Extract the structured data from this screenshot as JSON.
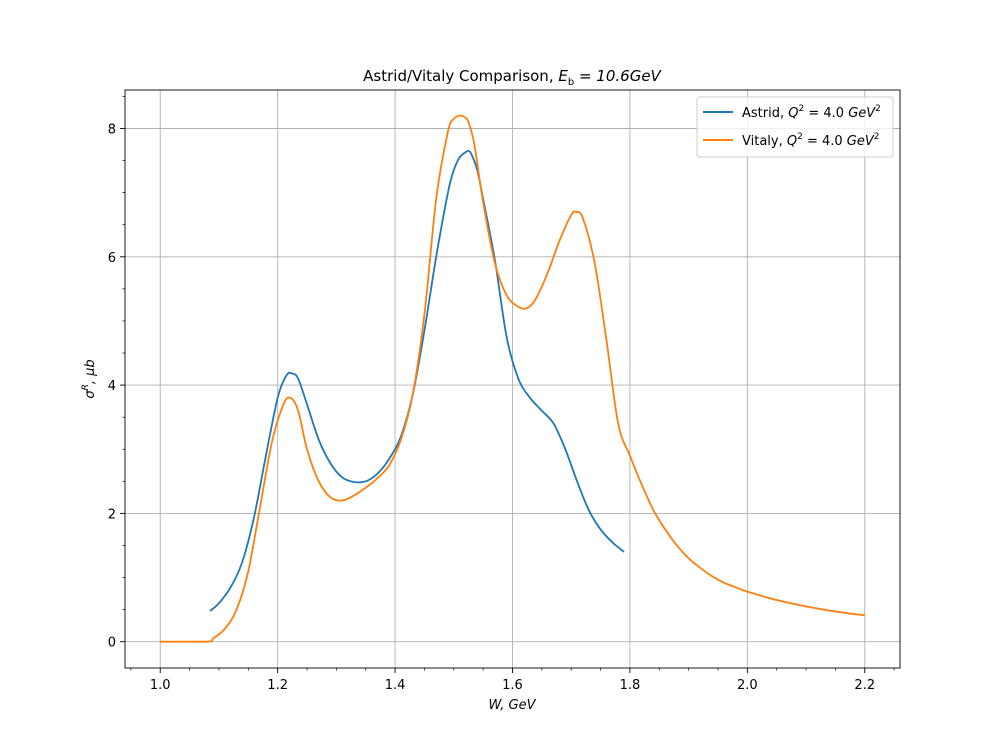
{
  "chart_data": {
    "type": "line",
    "title": "Astrid/Vitaly Comparison, E_b = 10.6GeV",
    "title_plain": "Astrid/Vitaly Comparison, ",
    "title_math": "E",
    "title_math_sub": "b",
    "title_math_rest": " = 10.6GeV",
    "xlabel": "W, GeV",
    "ylabel": "σR, μb",
    "ylabel_base": "σ",
    "ylabel_sup": "R",
    "ylabel_rest": ", μb",
    "xlim": [
      0.94,
      2.26
    ],
    "ylim": [
      -0.41,
      8.6
    ],
    "xticks": [
      "1.0",
      "1.2",
      "1.4",
      "1.6",
      "1.8",
      "2.0",
      "2.2"
    ],
    "yticks": [
      "0",
      "2",
      "4",
      "6",
      "8"
    ],
    "grid": true,
    "legend_position": "top-right",
    "series": [
      {
        "name": "Astrid, Q^2 = 4.0 GeV^2",
        "legend_prefix": "Astrid, ",
        "color": "#1f77b4",
        "x": [
          1.085,
          1.1,
          1.12,
          1.14,
          1.16,
          1.18,
          1.2,
          1.215,
          1.225,
          1.235,
          1.25,
          1.27,
          1.29,
          1.31,
          1.33,
          1.35,
          1.37,
          1.39,
          1.41,
          1.43,
          1.45,
          1.47,
          1.49,
          1.5,
          1.51,
          1.52,
          1.525,
          1.53,
          1.54,
          1.55,
          1.57,
          1.59,
          1.61,
          1.63,
          1.65,
          1.67,
          1.69,
          1.71,
          1.73,
          1.75,
          1.77,
          1.79
        ],
        "y": [
          0.48,
          0.6,
          0.85,
          1.25,
          1.95,
          2.9,
          3.8,
          4.15,
          4.18,
          4.1,
          3.7,
          3.15,
          2.78,
          2.56,
          2.49,
          2.5,
          2.62,
          2.85,
          3.2,
          3.85,
          4.85,
          6.0,
          7.0,
          7.35,
          7.55,
          7.63,
          7.65,
          7.6,
          7.35,
          6.9,
          5.95,
          4.75,
          4.1,
          3.8,
          3.6,
          3.4,
          3.0,
          2.5,
          2.05,
          1.75,
          1.55,
          1.4
        ]
      },
      {
        "name": "Vitaly, Q^2 = 4.0 GeV^2",
        "legend_prefix": "Vitaly, ",
        "color": "#ff7f0e",
        "x": [
          1.0,
          1.08,
          1.09,
          1.11,
          1.13,
          1.15,
          1.17,
          1.19,
          1.21,
          1.222,
          1.235,
          1.25,
          1.27,
          1.29,
          1.31,
          1.33,
          1.35,
          1.37,
          1.39,
          1.41,
          1.43,
          1.45,
          1.47,
          1.49,
          1.5,
          1.51,
          1.518,
          1.525,
          1.535,
          1.55,
          1.57,
          1.59,
          1.61,
          1.625,
          1.64,
          1.66,
          1.68,
          1.7,
          1.708,
          1.72,
          1.74,
          1.76,
          1.78,
          1.8,
          1.82,
          1.84,
          1.86,
          1.88,
          1.9,
          1.92,
          1.94,
          1.96,
          1.98,
          2.0,
          2.05,
          2.1,
          2.15,
          2.2
        ],
        "y": [
          0.0,
          0.0,
          0.05,
          0.2,
          0.5,
          1.1,
          2.1,
          3.1,
          3.7,
          3.8,
          3.6,
          3.0,
          2.5,
          2.25,
          2.2,
          2.28,
          2.4,
          2.55,
          2.75,
          3.15,
          3.85,
          5.1,
          6.9,
          7.95,
          8.15,
          8.2,
          8.18,
          8.1,
          7.75,
          6.85,
          5.9,
          5.4,
          5.22,
          5.2,
          5.35,
          5.75,
          6.25,
          6.65,
          6.7,
          6.6,
          5.9,
          4.7,
          3.4,
          2.9,
          2.45,
          2.05,
          1.75,
          1.5,
          1.3,
          1.15,
          1.02,
          0.92,
          0.85,
          0.78,
          0.65,
          0.55,
          0.47,
          0.41
        ]
      }
    ]
  }
}
